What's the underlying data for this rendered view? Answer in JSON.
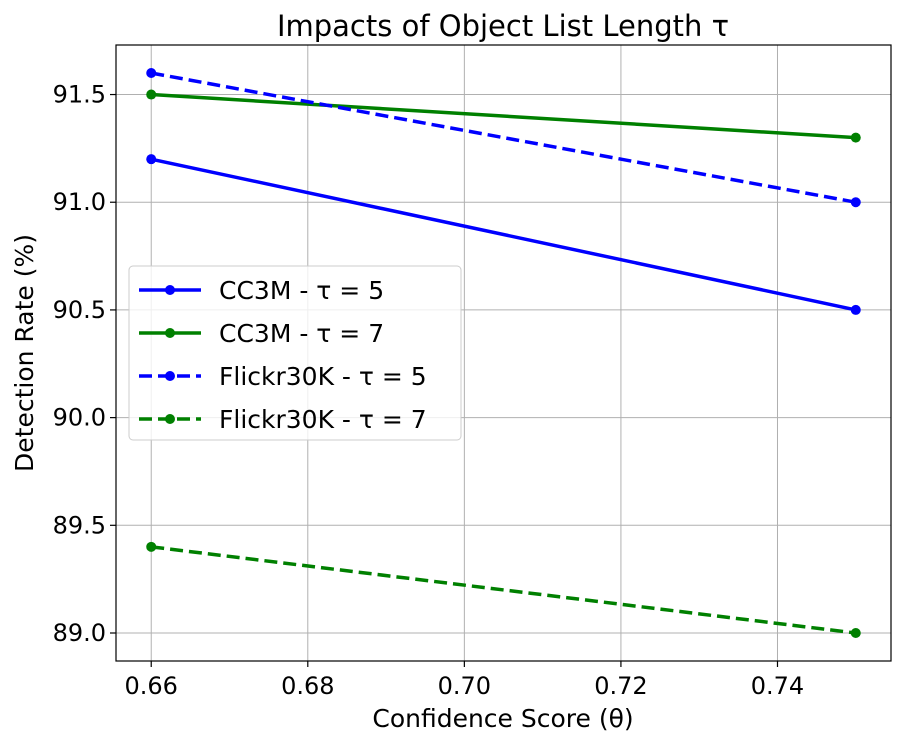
{
  "chart_data": {
    "type": "line",
    "title": "Impacts of Object List Length τ",
    "xlabel": "Confidence Score (θ)",
    "ylabel": "Detection Rate (%)",
    "x": [
      0.66,
      0.75
    ],
    "xlim": [
      0.6555,
      0.7545
    ],
    "ylim": [
      88.87,
      91.73
    ],
    "xticks": [
      0.66,
      0.68,
      0.7,
      0.72,
      0.74
    ],
    "xtick_labels": [
      "0.66",
      "0.68",
      "0.70",
      "0.72",
      "0.74"
    ],
    "yticks": [
      89.0,
      89.5,
      90.0,
      90.5,
      91.0,
      91.5
    ],
    "ytick_labels": [
      "89.0",
      "89.5",
      "90.0",
      "90.5",
      "91.0",
      "91.5"
    ],
    "grid": true,
    "legend_position": "center-left",
    "series": [
      {
        "name": "CC3M - τ = 5",
        "values": [
          91.2,
          90.5
        ],
        "color": "#0000ff",
        "linestyle": "solid",
        "marker": "circle"
      },
      {
        "name": "CC3M - τ = 7",
        "values": [
          91.5,
          91.3
        ],
        "color": "#008000",
        "linestyle": "solid",
        "marker": "circle"
      },
      {
        "name": "Flickr30K - τ = 5",
        "values": [
          91.6,
          91.0
        ],
        "color": "#0000ff",
        "linestyle": "dashed",
        "marker": "circle"
      },
      {
        "name": "Flickr30K - τ = 7",
        "values": [
          89.4,
          89.0
        ],
        "color": "#008000",
        "linestyle": "dashed",
        "marker": "circle"
      }
    ]
  }
}
